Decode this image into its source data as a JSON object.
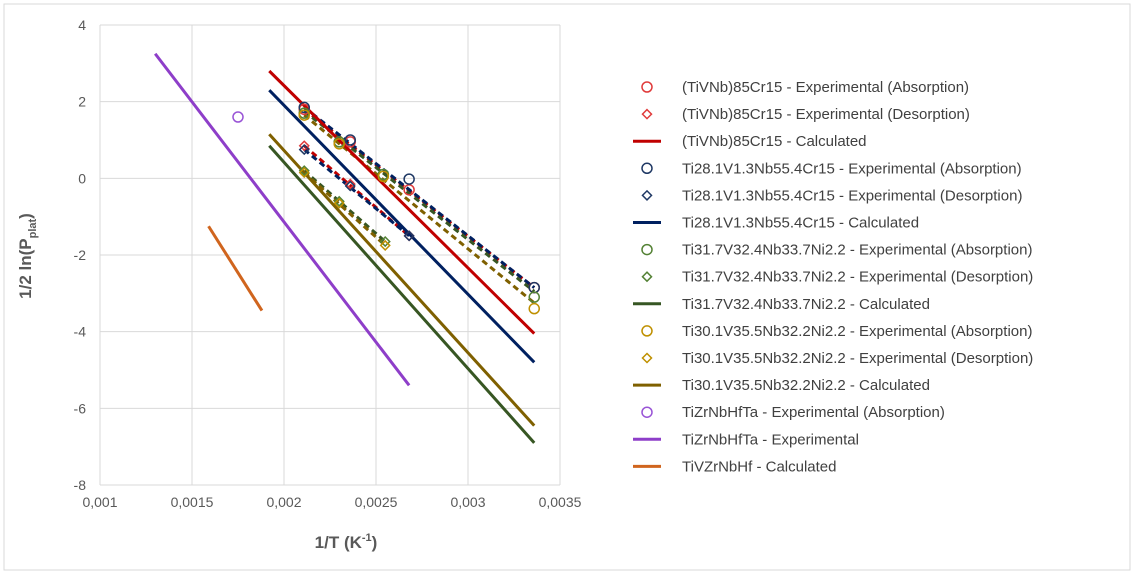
{
  "chart_data": {
    "type": "scatter",
    "xlabel": "1/T (K",
    "xlabel_sup": "-1",
    "xlabel_end": ")",
    "ylabel": "1/2 ln(P",
    "ylabel_sub": "plat",
    "ylabel_end": ")",
    "xlim": [
      0.001,
      0.0035
    ],
    "ylim": [
      -8,
      4
    ],
    "grid": true,
    "legend_position": "right",
    "x_ticks": [
      0.001,
      0.0015,
      0.002,
      0.0025,
      0.003,
      0.0035
    ],
    "x_tick_labels": [
      "0,001",
      "0,0015",
      "0,002",
      "0,0025",
      "0,003",
      "0,0035"
    ],
    "y_ticks": [
      4,
      2,
      0,
      -2,
      -4,
      -6,
      -8
    ],
    "y_tick_labels": [
      "4",
      "2",
      "0",
      "-2",
      "-4",
      "-6",
      "-8"
    ],
    "series": [
      {
        "name": "(TiVNb)85Cr15 - Experimental (Absorption)",
        "kind": "marker",
        "marker": "circle",
        "color": "#e03a3a",
        "points": [
          [
            0.00211,
            1.8
          ],
          [
            0.00236,
            0.95
          ],
          [
            0.00268,
            -0.3
          ],
          [
            0.00336,
            -2.85
          ]
        ]
      },
      {
        "name": "(TiVNb)85Cr15 - Experimental (Desorption)",
        "kind": "marker",
        "marker": "diamond",
        "color": "#e03a3a",
        "points": [
          [
            0.00211,
            0.85
          ],
          [
            0.00236,
            -0.15
          ],
          [
            0.00268,
            -1.5
          ]
        ]
      },
      {
        "name": "(TiVNb)85Cr15 - Calculated",
        "kind": "line",
        "color": "#c00000",
        "points": [
          [
            0.00192,
            2.8
          ],
          [
            0.00336,
            -4.05
          ]
        ]
      },
      {
        "name": "Ti28.1V1.3Nb55.4Cr15 - Experimental (Absorption)",
        "kind": "marker",
        "marker": "circle",
        "color": "#1f3864",
        "points": [
          [
            0.00211,
            1.85
          ],
          [
            0.00236,
            1.0
          ],
          [
            0.00268,
            -0.02
          ],
          [
            0.00336,
            -2.85
          ]
        ]
      },
      {
        "name": "Ti28.1V1.3Nb55.4Cr15 - Experimental (Desorption)",
        "kind": "marker",
        "marker": "diamond",
        "color": "#1f3864",
        "points": [
          [
            0.00211,
            0.75
          ],
          [
            0.00236,
            -0.2
          ],
          [
            0.00268,
            -1.5
          ]
        ]
      },
      {
        "name": "Ti28.1V1.3Nb55.4Cr15 - Calculated",
        "kind": "line",
        "color": "#002060",
        "points": [
          [
            0.00192,
            2.3
          ],
          [
            0.00336,
            -4.8
          ]
        ]
      },
      {
        "name": "Ti31.7V32.4Nb33.7Ni2.2 - Experimental (Absorption)",
        "kind": "marker",
        "marker": "circle",
        "color": "#548235",
        "points": [
          [
            0.00211,
            1.7
          ],
          [
            0.0023,
            0.95
          ],
          [
            0.00254,
            0.1
          ],
          [
            0.00336,
            -3.1
          ]
        ]
      },
      {
        "name": "Ti31.7V32.4Nb33.7Ni2.2 - Experimental (Desorption)",
        "kind": "marker",
        "marker": "diamond",
        "color": "#548235",
        "points": [
          [
            0.00211,
            0.2
          ],
          [
            0.0023,
            -0.6
          ],
          [
            0.00255,
            -1.65
          ]
        ]
      },
      {
        "name": "Ti31.7V32.4Nb33.7Ni2.2 - Calculated",
        "kind": "line",
        "color": "#375623",
        "points": [
          [
            0.00192,
            0.85
          ],
          [
            0.00336,
            -6.9
          ]
        ]
      },
      {
        "name": "Ti30.1V35.5Nb32.2Ni2.2 - Experimental (Absorption)",
        "kind": "marker",
        "marker": "circle",
        "color": "#bf9000",
        "points": [
          [
            0.00211,
            1.65
          ],
          [
            0.0023,
            0.9
          ],
          [
            0.00254,
            0.05
          ],
          [
            0.00336,
            -3.4
          ]
        ]
      },
      {
        "name": "Ti30.1V35.5Nb32.2Ni2.2 - Experimental (Desorption)",
        "kind": "marker",
        "marker": "diamond",
        "color": "#bf9000",
        "points": [
          [
            0.00211,
            0.15
          ],
          [
            0.0023,
            -0.65
          ],
          [
            0.00255,
            -1.75
          ]
        ]
      },
      {
        "name": "Ti30.1V35.5Nb32.2Ni2.2 - Calculated",
        "kind": "line",
        "color": "#7f6000",
        "points": [
          [
            0.00192,
            1.15
          ],
          [
            0.00336,
            -6.45
          ]
        ]
      },
      {
        "name": "TiZrNbHfTa - Experimental (Absorption)",
        "kind": "marker",
        "marker": "circle",
        "color": "#9954d6",
        "points": [
          [
            0.00175,
            1.6
          ]
        ]
      },
      {
        "name": "TiZrNbHfTa - Experimental",
        "kind": "line",
        "color": "#8e3ec9",
        "points": [
          [
            0.0013,
            3.25
          ],
          [
            0.00268,
            -5.4
          ]
        ]
      },
      {
        "name": "TiVZrNbHf - Calculated",
        "kind": "line",
        "color": "#d0651e",
        "points": [
          [
            0.00159,
            -1.25
          ],
          [
            0.00188,
            -3.45
          ]
        ]
      }
    ],
    "dashed_fits": [
      {
        "color": "#c00000",
        "points": [
          [
            0.00211,
            1.8
          ],
          [
            0.00336,
            -2.85
          ]
        ]
      },
      {
        "color": "#c00000",
        "points": [
          [
            0.00211,
            0.85
          ],
          [
            0.00268,
            -1.5
          ]
        ]
      },
      {
        "color": "#002060",
        "points": [
          [
            0.00211,
            1.85
          ],
          [
            0.00336,
            -2.85
          ]
        ]
      },
      {
        "color": "#002060",
        "points": [
          [
            0.00211,
            0.75
          ],
          [
            0.00268,
            -1.5
          ]
        ]
      },
      {
        "color": "#375623",
        "points": [
          [
            0.00211,
            1.75
          ],
          [
            0.00336,
            -2.95
          ]
        ]
      },
      {
        "color": "#375623",
        "points": [
          [
            0.00211,
            0.2
          ],
          [
            0.00255,
            -1.65
          ]
        ]
      },
      {
        "color": "#7f6000",
        "points": [
          [
            0.00211,
            1.65
          ],
          [
            0.00336,
            -3.25
          ]
        ]
      },
      {
        "color": "#7f6000",
        "points": [
          [
            0.00211,
            0.15
          ],
          [
            0.00255,
            -1.75
          ]
        ]
      }
    ]
  }
}
